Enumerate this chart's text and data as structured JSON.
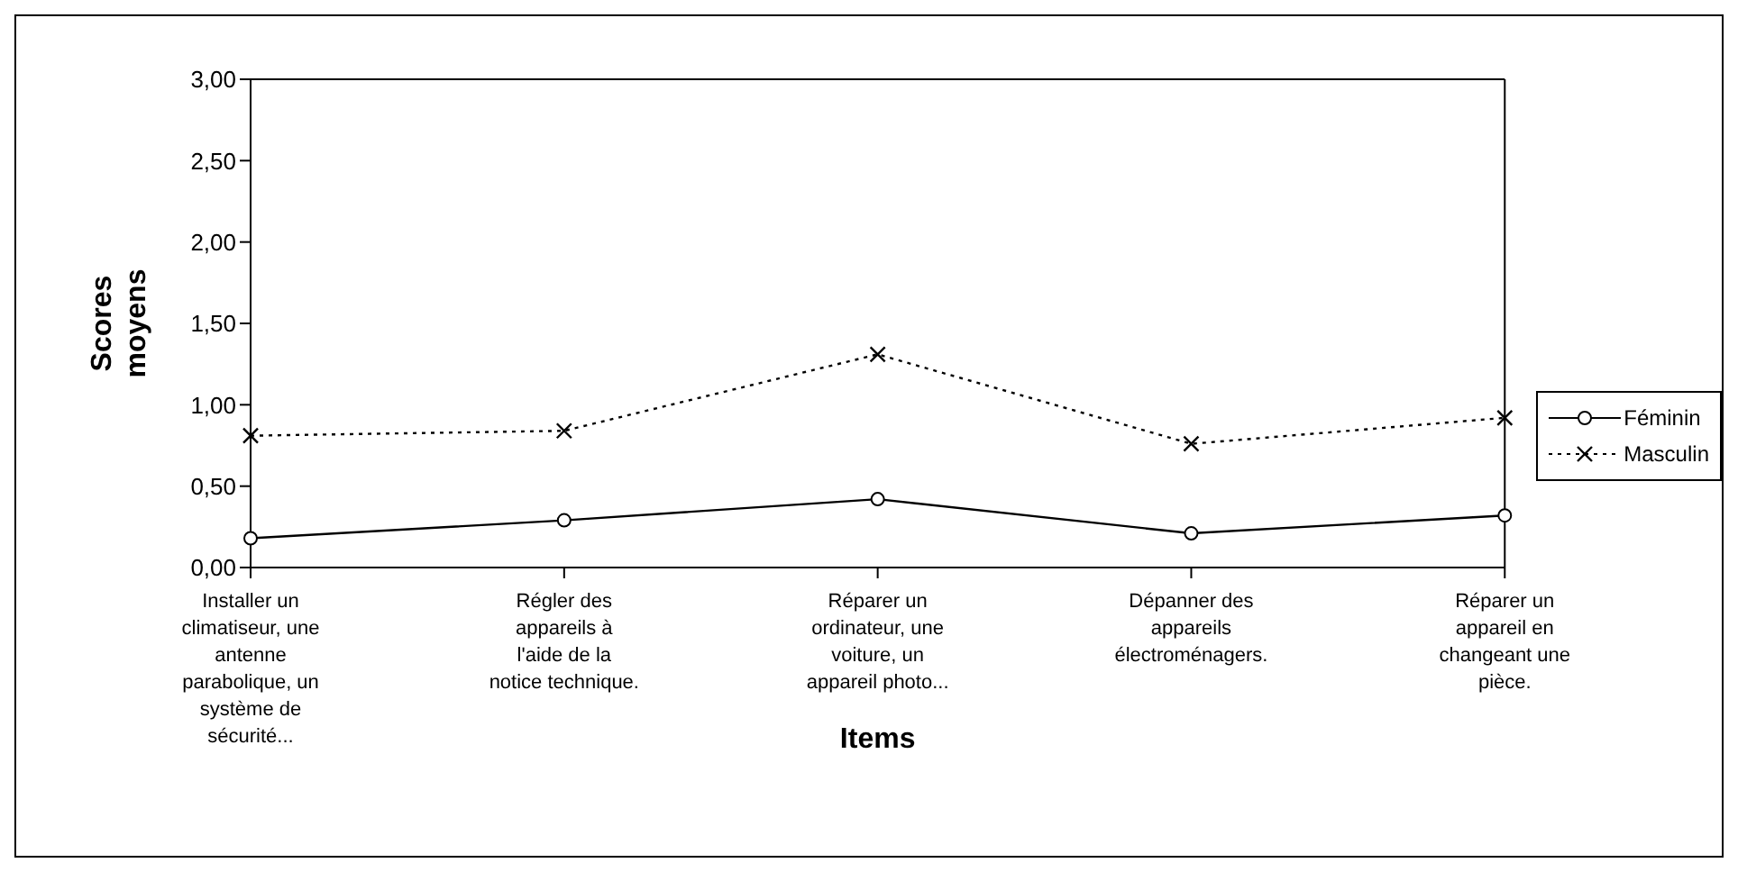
{
  "chart_data": {
    "type": "line",
    "xlabel": "Items",
    "ylabel": "Scores moyens",
    "categories": [
      "Installer un climatiseur, une antenne parabolique, un système de sécurité...",
      "Régler des appareils à l'aide de la notice technique.",
      "Réparer un ordinateur, une voiture, un appareil photo...",
      "Dépanner des appareils électroménagers.",
      "Réparer un appareil en changeant une pièce."
    ],
    "series": [
      {
        "name": "Féminin",
        "color": "#000000",
        "marker": "circle",
        "line_style": "solid",
        "values": [
          0.18,
          0.29,
          0.42,
          0.21,
          0.32
        ]
      },
      {
        "name": "Masculin",
        "color": "#000000",
        "marker": "cross",
        "line_style": "dotted",
        "values": [
          0.81,
          0.84,
          1.31,
          0.76,
          0.92
        ]
      }
    ],
    "ylim": [
      0,
      3
    ],
    "yticks": [
      {
        "value": 0,
        "label": "0,00"
      },
      {
        "value": 0.5,
        "label": "0,50"
      },
      {
        "value": 1,
        "label": "1,00"
      },
      {
        "value": 1.5,
        "label": "1,50"
      },
      {
        "value": 2,
        "label": "2,00"
      },
      {
        "value": 2.5,
        "label": "2,50"
      },
      {
        "value": 3,
        "label": "3,00"
      }
    ],
    "grid": false,
    "legend": "right"
  }
}
